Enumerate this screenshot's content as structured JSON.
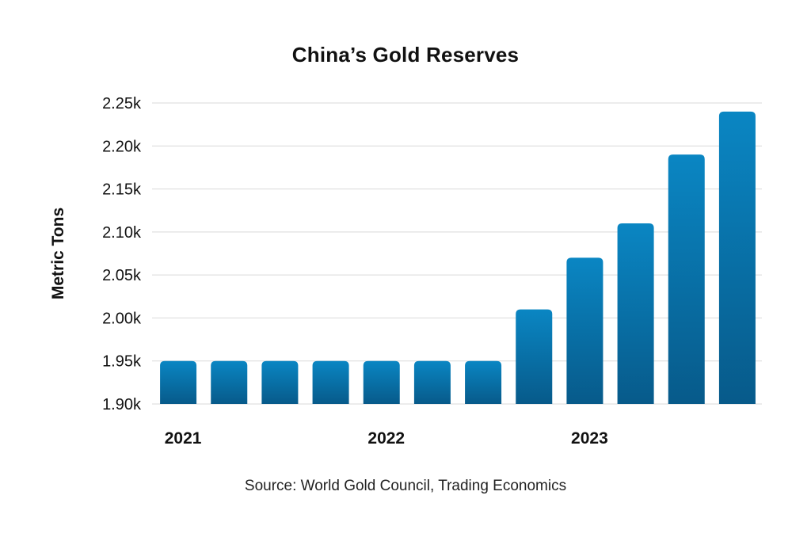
{
  "chart_data": {
    "type": "bar",
    "title": "China’s Gold Reserves",
    "ylabel": "Metric Tons",
    "xlabel": "",
    "source": "Source: World Gold Council, Trading Economics",
    "categories": [
      "",
      "",
      "",
      "",
      "",
      "",
      "",
      "",
      "",
      "",
      "",
      ""
    ],
    "x_tick_labels": [
      {
        "index": 0,
        "label": "2021"
      },
      {
        "index": 4,
        "label": "2022"
      },
      {
        "index": 8,
        "label": "2023"
      }
    ],
    "values": [
      1950,
      1950,
      1950,
      1950,
      1950,
      1950,
      1950,
      2010,
      2070,
      2110,
      2190,
      2240
    ],
    "ylim": [
      1900,
      2250
    ],
    "yticks": [
      1900,
      1950,
      2000,
      2050,
      2100,
      2150,
      2200,
      2250
    ],
    "ytick_labels": [
      "1.90k",
      "1.95k",
      "2.00k",
      "2.05k",
      "2.10k",
      "2.15k",
      "2.20k",
      "2.25k"
    ],
    "grid": true,
    "legend": "none",
    "colors": {
      "bar_top": "#0a86c3",
      "bar_bottom": "#075a8a",
      "grid": "#d9d9d9"
    }
  }
}
